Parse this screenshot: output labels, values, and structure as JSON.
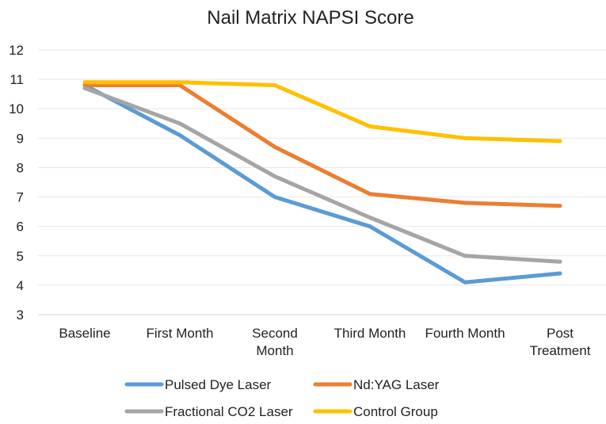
{
  "chart_data": {
    "type": "line",
    "title": "Nail Matrix NAPSI Score",
    "xlabel": "",
    "ylabel": "",
    "categories": [
      [
        "Baseline"
      ],
      [
        "First Month"
      ],
      [
        "Second",
        "Month"
      ],
      [
        "Third Month"
      ],
      [
        "Fourth Month"
      ],
      [
        "Post",
        "Treatment"
      ]
    ],
    "ylim": [
      3,
      12
    ],
    "yticks": [
      3,
      4,
      5,
      6,
      7,
      8,
      9,
      10,
      11,
      12
    ],
    "grid": true,
    "legend_position": "bottom",
    "series": [
      {
        "name": "Pulsed Dye Laser",
        "color": "#5b9bd5",
        "values": [
          10.8,
          9.1,
          7.0,
          6.0,
          4.1,
          4.4
        ]
      },
      {
        "name": "Nd:YAG Laser",
        "color": "#ed7d31",
        "values": [
          10.8,
          10.8,
          8.7,
          7.1,
          6.8,
          6.7
        ]
      },
      {
        "name": "Fractional CO2 Laser",
        "color": "#a5a5a5",
        "values": [
          10.7,
          9.5,
          7.7,
          6.3,
          5.0,
          4.8
        ]
      },
      {
        "name": "Control Group",
        "color": "#ffc000",
        "values": [
          10.9,
          10.9,
          10.8,
          9.4,
          9.0,
          8.9
        ]
      }
    ]
  }
}
